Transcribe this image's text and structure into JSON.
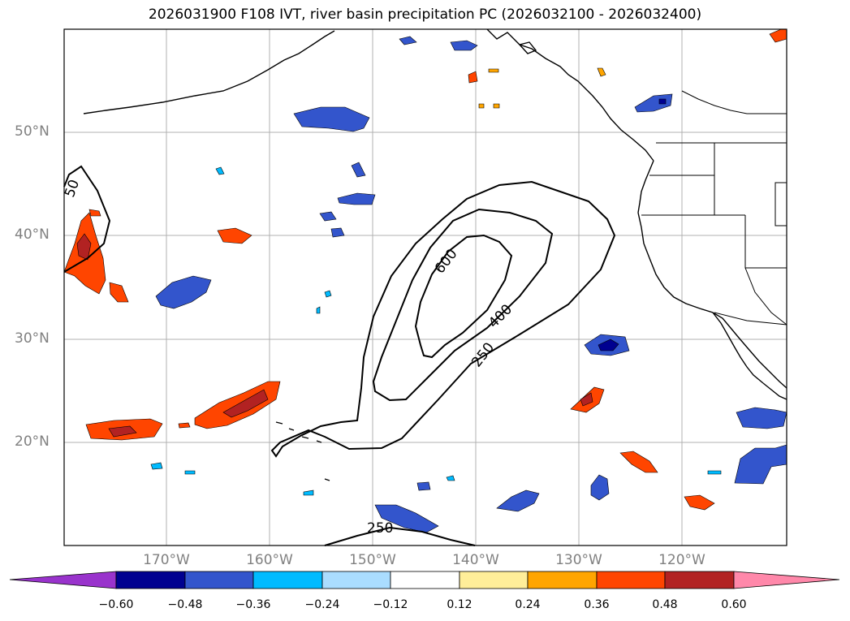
{
  "title": "2026031900 F108 IVT, river basin precipitation PC (2026032100 - 2026032400)",
  "lat_labels": [
    "50°N",
    "40°N",
    "30°N",
    "20°N"
  ],
  "lon_labels": [
    "170°W",
    "160°W",
    "150°W",
    "140°W",
    "130°W",
    "120°W"
  ],
  "contour_labels": [
    "600",
    "400",
    "250",
    "250",
    "50"
  ],
  "colorbar": {
    "ticks": [
      "−0.60",
      "−0.48",
      "−0.36",
      "−0.24",
      "−0.12",
      "0.12",
      "0.24",
      "0.36",
      "0.48",
      "0.60"
    ],
    "colors": {
      "under": "#9933cc",
      "bins": [
        "#000090",
        "#3355cc",
        "#00bbff",
        "#aaddff",
        "#ffffff",
        "#ffee99",
        "#ffa500",
        "#ff4500",
        "#b22222",
        "#ff88aa"
      ],
      "over": "#ff88aa"
    }
  }
}
